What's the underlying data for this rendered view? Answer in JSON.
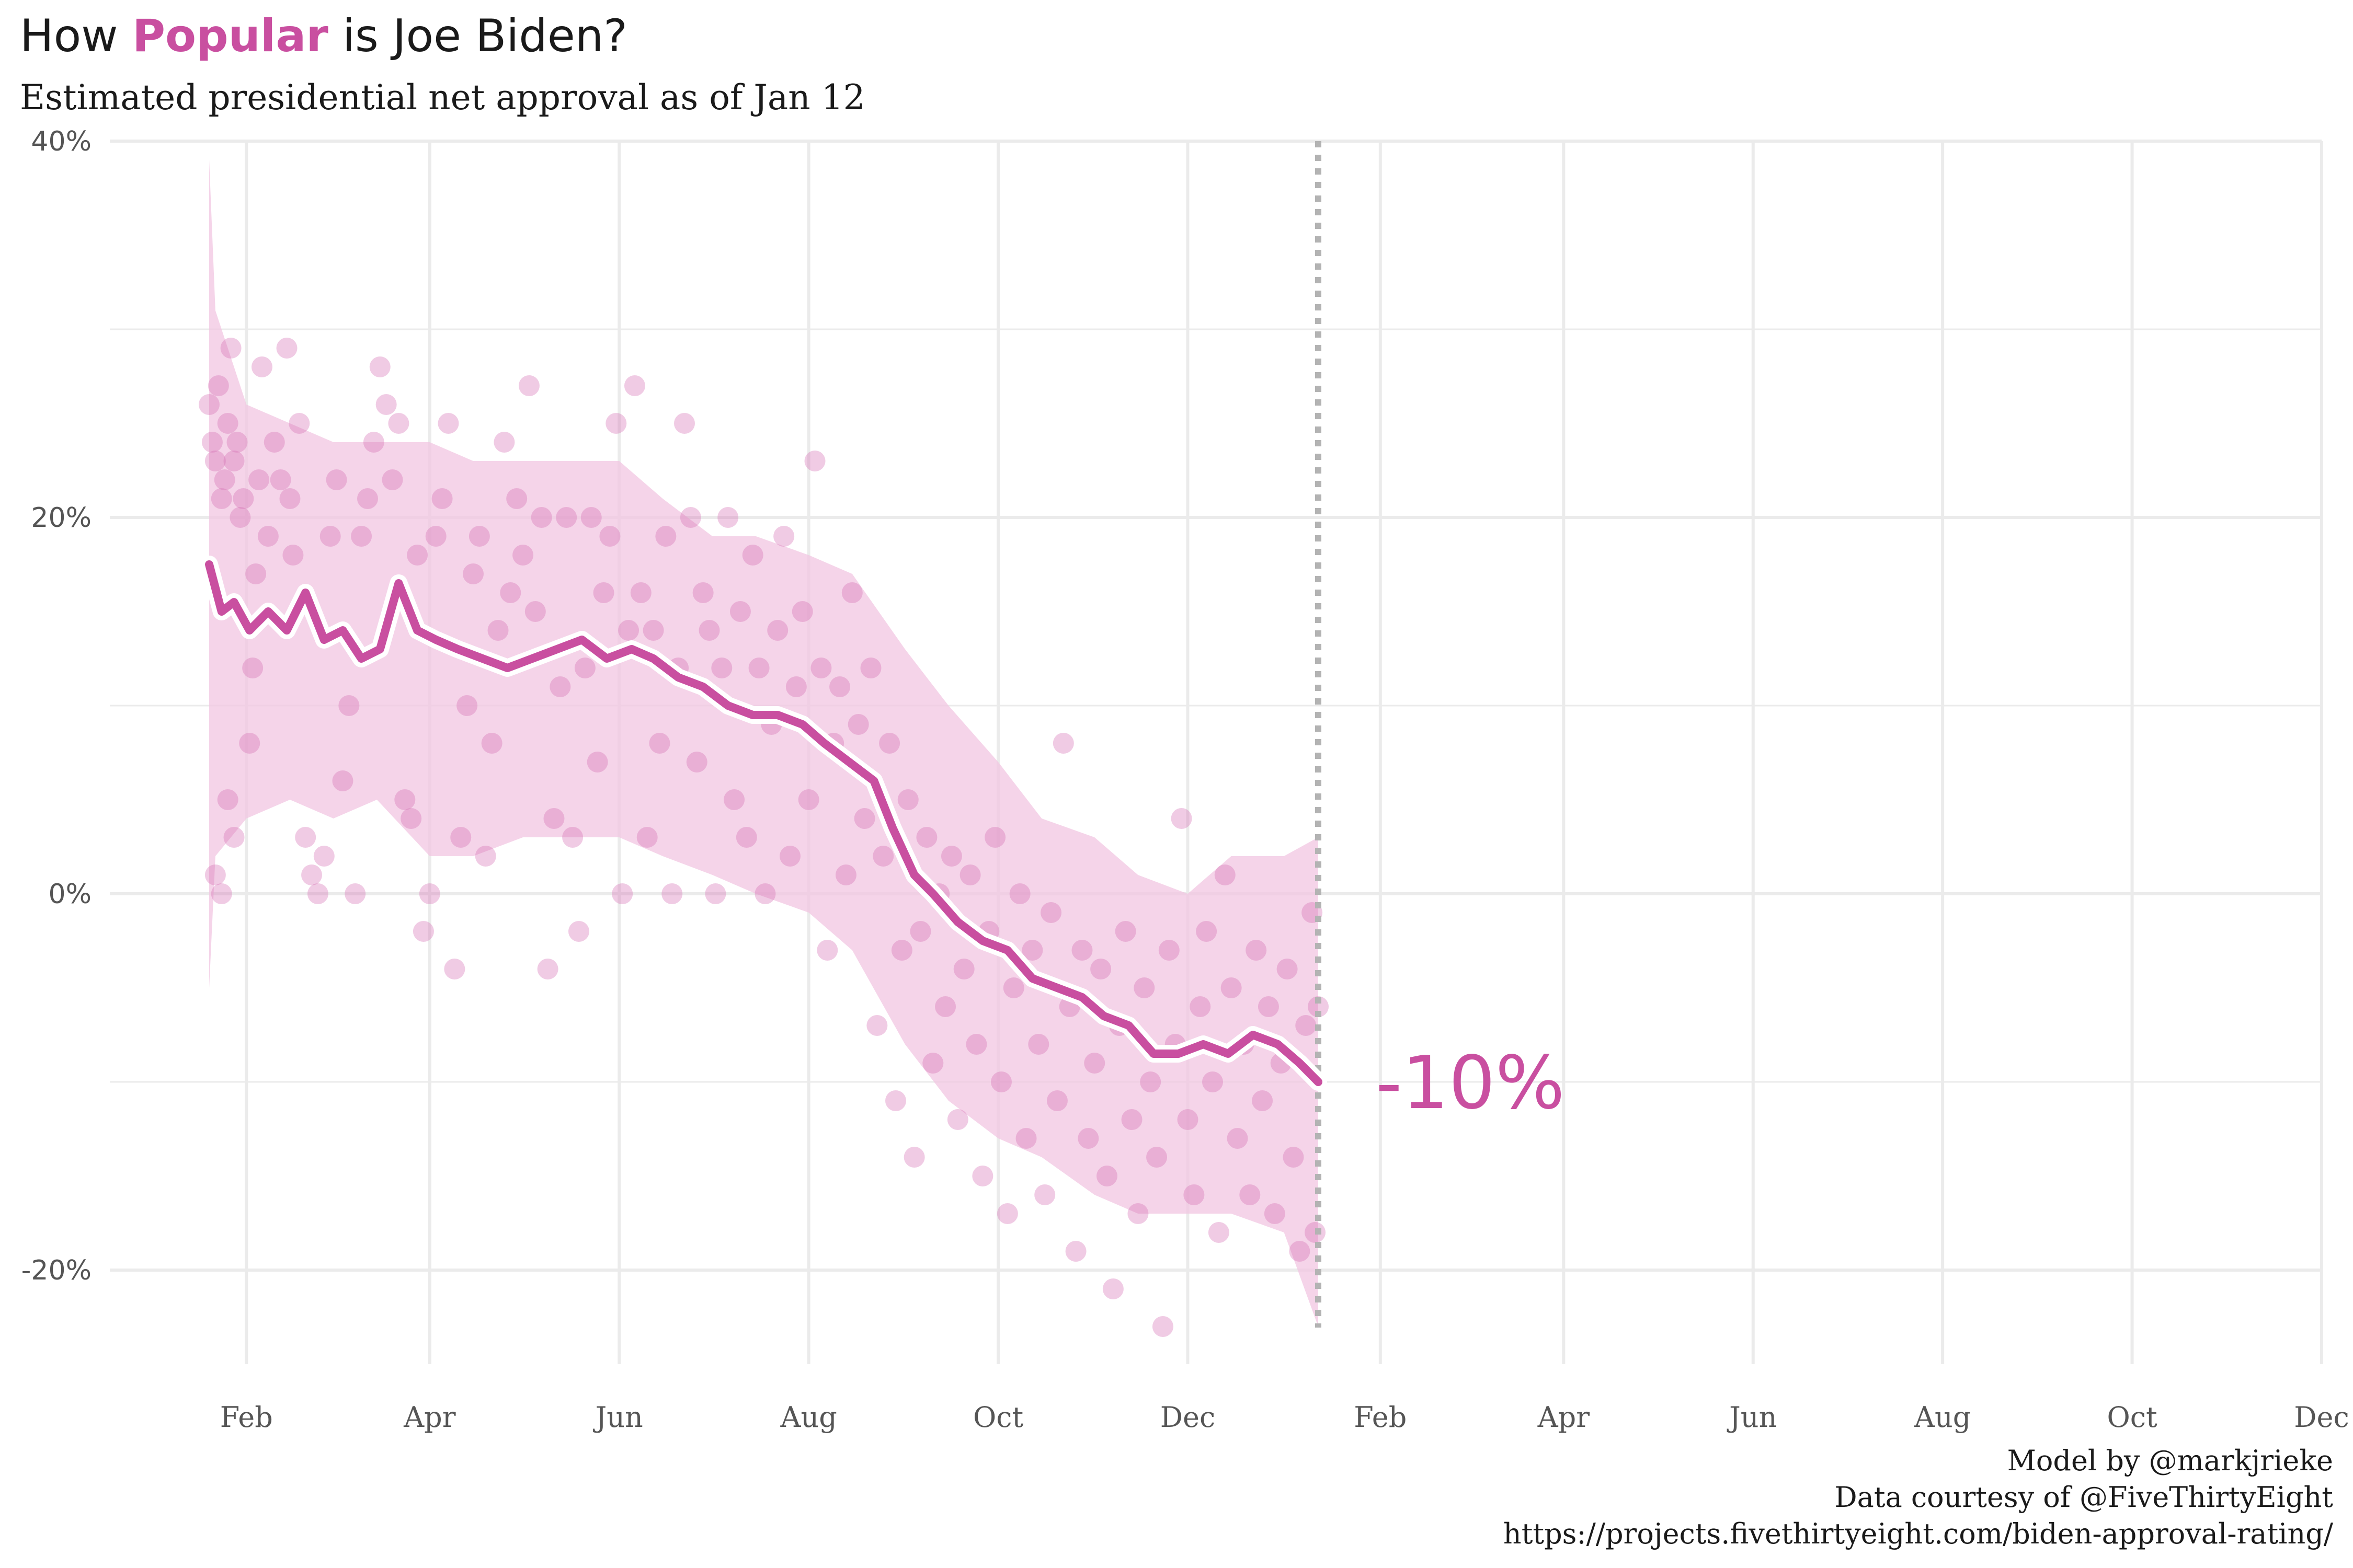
{
  "title": {
    "prefix": "How ",
    "highlight": "Popular",
    "suffix": " is Joe Biden?"
  },
  "subtitle": "Estimated presidential net approval as of Jan 12",
  "caption": {
    "line1": "Model by @markjrieke",
    "line2": "Data courtesy of @FiveThirtyEight",
    "line3": "https://projects.fivethirtyeight.com/biden-approval-rating/"
  },
  "colors": {
    "accent": "#c94fa0",
    "band": "#f1c6e2",
    "points": "#d46bb3",
    "grid": "#ebebeb",
    "cutoff": "#b3b3b3"
  },
  "chart_data": {
    "type": "line",
    "title": "How Popular is Joe Biden?",
    "subtitle": "Estimated presidential net approval as of Jan 12",
    "xlabel": "",
    "ylabel": "",
    "end_label": "-10%",
    "ylim": [
      -25,
      40
    ],
    "y_ticks": [
      40,
      20,
      0,
      -20
    ],
    "y_tick_labels": [
      "40%",
      "20%",
      "0%",
      "-20%"
    ],
    "x_ticks": [
      "2021-02-01",
      "2021-04-01",
      "2021-06-01",
      "2021-08-01",
      "2021-10-01",
      "2021-12-01",
      "2022-02-01",
      "2022-04-01",
      "2022-06-01",
      "2022-08-01",
      "2022-10-01",
      "2022-12-01"
    ],
    "x_tick_labels": [
      "Feb",
      "Apr",
      "Jun",
      "Aug",
      "Oct",
      "Dec",
      "Feb",
      "Apr",
      "Jun",
      "Aug",
      "Oct",
      "Dec"
    ],
    "xlim": [
      "2021-01-20",
      "2022-12-01"
    ],
    "cutoff_date": "2022-01-12",
    "series": [
      {
        "name": "",
        "style": "line",
        "points": [
          [
            "2021-01-20",
            17.5
          ],
          [
            "2021-01-24",
            15.0
          ],
          [
            "2021-01-28",
            15.5
          ],
          [
            "2021-02-02",
            14.0
          ],
          [
            "2021-02-08",
            15.0
          ],
          [
            "2021-02-14",
            14.0
          ],
          [
            "2021-02-20",
            16.0
          ],
          [
            "2021-02-26",
            13.5
          ],
          [
            "2021-03-04",
            14.0
          ],
          [
            "2021-03-10",
            12.5
          ],
          [
            "2021-03-16",
            13.0
          ],
          [
            "2021-03-22",
            16.5
          ],
          [
            "2021-03-28",
            14.0
          ],
          [
            "2021-04-03",
            13.5
          ],
          [
            "2021-04-10",
            13.0
          ],
          [
            "2021-04-18",
            12.5
          ],
          [
            "2021-04-26",
            12.0
          ],
          [
            "2021-05-04",
            12.5
          ],
          [
            "2021-05-12",
            13.0
          ],
          [
            "2021-05-20",
            13.5
          ],
          [
            "2021-05-28",
            12.5
          ],
          [
            "2021-06-05",
            13.0
          ],
          [
            "2021-06-12",
            12.5
          ],
          [
            "2021-06-20",
            11.5
          ],
          [
            "2021-06-28",
            11.0
          ],
          [
            "2021-07-06",
            10.0
          ],
          [
            "2021-07-14",
            9.5
          ],
          [
            "2021-07-22",
            9.5
          ],
          [
            "2021-07-30",
            9.0
          ],
          [
            "2021-08-06",
            8.0
          ],
          [
            "2021-08-14",
            7.0
          ],
          [
            "2021-08-22",
            6.0
          ],
          [
            "2021-08-28",
            3.5
          ],
          [
            "2021-09-04",
            1.0
          ],
          [
            "2021-09-10",
            0.0
          ],
          [
            "2021-09-18",
            -1.5
          ],
          [
            "2021-09-26",
            -2.5
          ],
          [
            "2021-10-04",
            -3.0
          ],
          [
            "2021-10-12",
            -4.5
          ],
          [
            "2021-10-20",
            -5.0
          ],
          [
            "2021-10-28",
            -5.5
          ],
          [
            "2021-11-04",
            -6.5
          ],
          [
            "2021-11-12",
            -7.0
          ],
          [
            "2021-11-20",
            -8.5
          ],
          [
            "2021-11-28",
            -8.5
          ],
          [
            "2021-12-06",
            -8.0
          ],
          [
            "2021-12-14",
            -8.5
          ],
          [
            "2021-12-22",
            -7.5
          ],
          [
            "2021-12-30",
            -8.0
          ],
          [
            "2022-01-06",
            -9.0
          ],
          [
            "2022-01-12",
            -10.0
          ]
        ]
      },
      {
        "name": "",
        "style": "band",
        "points": [
          [
            "2021-01-20",
            -5,
            39
          ],
          [
            "2021-01-22",
            2,
            31
          ],
          [
            "2021-02-01",
            4,
            26
          ],
          [
            "2021-02-15",
            5,
            25
          ],
          [
            "2021-03-01",
            4,
            24
          ],
          [
            "2021-03-15",
            5,
            24
          ],
          [
            "2021-04-01",
            2,
            24
          ],
          [
            "2021-04-15",
            2,
            23
          ],
          [
            "2021-05-01",
            3,
            23
          ],
          [
            "2021-05-15",
            3,
            23
          ],
          [
            "2021-06-01",
            3,
            23
          ],
          [
            "2021-06-15",
            2,
            21
          ],
          [
            "2021-07-01",
            1,
            19
          ],
          [
            "2021-07-15",
            0,
            19
          ],
          [
            "2021-08-01",
            -1,
            18
          ],
          [
            "2021-08-15",
            -3,
            17
          ],
          [
            "2021-09-01",
            -8,
            13
          ],
          [
            "2021-09-15",
            -11,
            10
          ],
          [
            "2021-10-01",
            -13,
            7
          ],
          [
            "2021-10-15",
            -14,
            4
          ],
          [
            "2021-11-01",
            -16,
            3
          ],
          [
            "2021-11-15",
            -17,
            1
          ],
          [
            "2021-12-01",
            -17,
            0
          ],
          [
            "2021-12-15",
            -17,
            2
          ],
          [
            "2022-01-01",
            -18,
            2
          ],
          [
            "2022-01-12",
            -23,
            3
          ]
        ]
      }
    ],
    "polls": [
      [
        "2021-01-20",
        26
      ],
      [
        "2021-01-21",
        24
      ],
      [
        "2021-01-22",
        23
      ],
      [
        "2021-01-23",
        27
      ],
      [
        "2021-01-24",
        21
      ],
      [
        "2021-01-25",
        22
      ],
      [
        "2021-01-26",
        25
      ],
      [
        "2021-01-27",
        29
      ],
      [
        "2021-01-28",
        23
      ],
      [
        "2021-01-29",
        24
      ],
      [
        "2021-01-30",
        20
      ],
      [
        "2021-01-31",
        21
      ],
      [
        "2021-01-22",
        1
      ],
      [
        "2021-01-24",
        0
      ],
      [
        "2021-01-26",
        5
      ],
      [
        "2021-01-28",
        3
      ],
      [
        "2021-02-02",
        8
      ],
      [
        "2021-02-03",
        12
      ],
      [
        "2021-02-04",
        17
      ],
      [
        "2021-02-05",
        22
      ],
      [
        "2021-02-06",
        28
      ],
      [
        "2021-02-08",
        19
      ],
      [
        "2021-02-10",
        24
      ],
      [
        "2021-02-12",
        22
      ],
      [
        "2021-02-14",
        29
      ],
      [
        "2021-02-15",
        21
      ],
      [
        "2021-02-16",
        18
      ],
      [
        "2021-02-18",
        25
      ],
      [
        "2021-02-20",
        3
      ],
      [
        "2021-02-22",
        1
      ],
      [
        "2021-02-24",
        0
      ],
      [
        "2021-02-26",
        2
      ],
      [
        "2021-02-28",
        19
      ],
      [
        "2021-03-02",
        22
      ],
      [
        "2021-03-04",
        6
      ],
      [
        "2021-03-06",
        10
      ],
      [
        "2021-03-08",
        0
      ],
      [
        "2021-03-10",
        19
      ],
      [
        "2021-03-12",
        21
      ],
      [
        "2021-03-14",
        24
      ],
      [
        "2021-03-16",
        28
      ],
      [
        "2021-03-18",
        26
      ],
      [
        "2021-03-20",
        22
      ],
      [
        "2021-03-22",
        25
      ],
      [
        "2021-03-24",
        5
      ],
      [
        "2021-03-26",
        4
      ],
      [
        "2021-03-28",
        18
      ],
      [
        "2021-03-30",
        -2
      ],
      [
        "2021-04-01",
        0
      ],
      [
        "2021-04-03",
        19
      ],
      [
        "2021-04-05",
        21
      ],
      [
        "2021-04-07",
        25
      ],
      [
        "2021-04-09",
        -4
      ],
      [
        "2021-04-11",
        3
      ],
      [
        "2021-04-13",
        10
      ],
      [
        "2021-04-15",
        17
      ],
      [
        "2021-04-17",
        19
      ],
      [
        "2021-04-19",
        2
      ],
      [
        "2021-04-21",
        8
      ],
      [
        "2021-04-23",
        14
      ],
      [
        "2021-04-25",
        24
      ],
      [
        "2021-04-27",
        16
      ],
      [
        "2021-04-29",
        21
      ],
      [
        "2021-05-01",
        18
      ],
      [
        "2021-05-03",
        27
      ],
      [
        "2021-05-05",
        15
      ],
      [
        "2021-05-07",
        20
      ],
      [
        "2021-05-09",
        -4
      ],
      [
        "2021-05-11",
        4
      ],
      [
        "2021-05-13",
        11
      ],
      [
        "2021-05-15",
        20
      ],
      [
        "2021-05-17",
        3
      ],
      [
        "2021-05-19",
        -2
      ],
      [
        "2021-05-21",
        12
      ],
      [
        "2021-05-23",
        20
      ],
      [
        "2021-05-25",
        7
      ],
      [
        "2021-05-27",
        16
      ],
      [
        "2021-05-29",
        19
      ],
      [
        "2021-05-31",
        25
      ],
      [
        "2021-06-02",
        0
      ],
      [
        "2021-06-04",
        14
      ],
      [
        "2021-06-06",
        27
      ],
      [
        "2021-06-08",
        16
      ],
      [
        "2021-06-10",
        3
      ],
      [
        "2021-06-12",
        14
      ],
      [
        "2021-06-14",
        8
      ],
      [
        "2021-06-16",
        19
      ],
      [
        "2021-06-18",
        0
      ],
      [
        "2021-06-20",
        12
      ],
      [
        "2021-06-22",
        25
      ],
      [
        "2021-06-24",
        20
      ],
      [
        "2021-06-26",
        7
      ],
      [
        "2021-06-28",
        16
      ],
      [
        "2021-06-30",
        14
      ],
      [
        "2021-07-02",
        0
      ],
      [
        "2021-07-04",
        12
      ],
      [
        "2021-07-06",
        20
      ],
      [
        "2021-07-08",
        5
      ],
      [
        "2021-07-10",
        15
      ],
      [
        "2021-07-12",
        3
      ],
      [
        "2021-07-14",
        18
      ],
      [
        "2021-07-16",
        12
      ],
      [
        "2021-07-18",
        0
      ],
      [
        "2021-07-20",
        9
      ],
      [
        "2021-07-22",
        14
      ],
      [
        "2021-07-24",
        19
      ],
      [
        "2021-07-26",
        2
      ],
      [
        "2021-07-28",
        11
      ],
      [
        "2021-07-30",
        15
      ],
      [
        "2021-08-01",
        5
      ],
      [
        "2021-08-03",
        23
      ],
      [
        "2021-08-05",
        12
      ],
      [
        "2021-08-07",
        -3
      ],
      [
        "2021-08-09",
        8
      ],
      [
        "2021-08-11",
        11
      ],
      [
        "2021-08-13",
        1
      ],
      [
        "2021-08-15",
        16
      ],
      [
        "2021-08-17",
        9
      ],
      [
        "2021-08-19",
        4
      ],
      [
        "2021-08-21",
        12
      ],
      [
        "2021-08-23",
        -7
      ],
      [
        "2021-08-25",
        2
      ],
      [
        "2021-08-27",
        8
      ],
      [
        "2021-08-29",
        -11
      ],
      [
        "2021-08-31",
        -3
      ],
      [
        "2021-09-02",
        5
      ],
      [
        "2021-09-04",
        -14
      ],
      [
        "2021-09-06",
        -2
      ],
      [
        "2021-09-08",
        3
      ],
      [
        "2021-09-10",
        -9
      ],
      [
        "2021-09-12",
        0
      ],
      [
        "2021-09-14",
        -6
      ],
      [
        "2021-09-16",
        2
      ],
      [
        "2021-09-18",
        -12
      ],
      [
        "2021-09-20",
        -4
      ],
      [
        "2021-09-22",
        1
      ],
      [
        "2021-09-24",
        -8
      ],
      [
        "2021-09-26",
        -15
      ],
      [
        "2021-09-28",
        -2
      ],
      [
        "2021-09-30",
        3
      ],
      [
        "2021-10-02",
        -10
      ],
      [
        "2021-10-04",
        -17
      ],
      [
        "2021-10-06",
        -5
      ],
      [
        "2021-10-08",
        0
      ],
      [
        "2021-10-10",
        -13
      ],
      [
        "2021-10-12",
        -3
      ],
      [
        "2021-10-14",
        -8
      ],
      [
        "2021-10-16",
        -16
      ],
      [
        "2021-10-18",
        -1
      ],
      [
        "2021-10-20",
        -11
      ],
      [
        "2021-10-22",
        8
      ],
      [
        "2021-10-24",
        -6
      ],
      [
        "2021-10-26",
        -19
      ],
      [
        "2021-10-28",
        -3
      ],
      [
        "2021-10-30",
        -13
      ],
      [
        "2021-11-01",
        -9
      ],
      [
        "2021-11-03",
        -4
      ],
      [
        "2021-11-05",
        -15
      ],
      [
        "2021-11-07",
        -21
      ],
      [
        "2021-11-09",
        -7
      ],
      [
        "2021-11-11",
        -2
      ],
      [
        "2021-11-13",
        -12
      ],
      [
        "2021-11-15",
        -17
      ],
      [
        "2021-11-17",
        -5
      ],
      [
        "2021-11-19",
        -10
      ],
      [
        "2021-11-21",
        -14
      ],
      [
        "2021-11-23",
        -23
      ],
      [
        "2021-11-25",
        -3
      ],
      [
        "2021-11-27",
        -8
      ],
      [
        "2021-11-29",
        4
      ],
      [
        "2021-12-01",
        -12
      ],
      [
        "2021-12-03",
        -16
      ],
      [
        "2021-12-05",
        -6
      ],
      [
        "2021-12-07",
        -2
      ],
      [
        "2021-12-09",
        -10
      ],
      [
        "2021-12-11",
        -18
      ],
      [
        "2021-12-13",
        1
      ],
      [
        "2021-12-15",
        -5
      ],
      [
        "2021-12-17",
        -13
      ],
      [
        "2021-12-19",
        -8
      ],
      [
        "2021-12-21",
        -16
      ],
      [
        "2021-12-23",
        -3
      ],
      [
        "2021-12-25",
        -11
      ],
      [
        "2021-12-27",
        -6
      ],
      [
        "2021-12-29",
        -17
      ],
      [
        "2021-12-31",
        -9
      ],
      [
        "2022-01-02",
        -4
      ],
      [
        "2022-01-04",
        -14
      ],
      [
        "2022-01-06",
        -19
      ],
      [
        "2022-01-08",
        -7
      ],
      [
        "2022-01-10",
        -1
      ],
      [
        "2022-01-11",
        -18
      ],
      [
        "2022-01-12",
        -6
      ]
    ]
  }
}
